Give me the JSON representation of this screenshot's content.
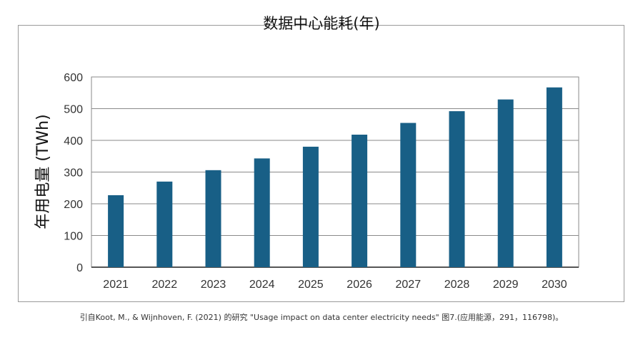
{
  "chart_data": {
    "type": "bar",
    "title": "数据中心能耗(年)",
    "xlabel": "",
    "ylabel": "年用电量 (TWh)",
    "categories": [
      "2021",
      "2022",
      "2023",
      "2024",
      "2025",
      "2026",
      "2027",
      "2028",
      "2029",
      "2030"
    ],
    "values": [
      227,
      270,
      306,
      343,
      380,
      418,
      455,
      492,
      529,
      567
    ],
    "ylim": [
      0,
      600
    ],
    "yticks": [
      0,
      100,
      200,
      300,
      400,
      500,
      600
    ],
    "grid": true,
    "legend": "none",
    "bar_color": "#185f86"
  },
  "caption": "引自Koot, M., & Wijnhoven, F. (2021) 的研究 \"Usage impact on data center electricity needs\" 图7.(应用能源，291，116798)。"
}
